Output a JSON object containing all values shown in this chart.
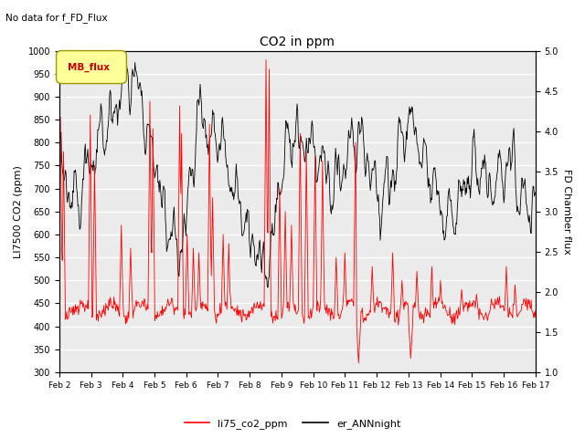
{
  "title": "CO2 in ppm",
  "top_left_text": "No data for f_FD_Flux",
  "ylabel_left": "LI7500 CO2 (ppm)",
  "ylabel_right": "FD Chamber flux",
  "ylim_left": [
    300,
    1000
  ],
  "ylim_right": [
    1.0,
    5.0
  ],
  "yticks_left": [
    300,
    350,
    400,
    450,
    500,
    550,
    600,
    650,
    700,
    750,
    800,
    850,
    900,
    950,
    1000
  ],
  "yticks_right": [
    1.0,
    1.5,
    2.0,
    2.5,
    3.0,
    3.5,
    4.0,
    4.5,
    5.0
  ],
  "xlabels": [
    "Feb 2",
    "Feb 3",
    "Feb 4",
    "Feb 5",
    "Feb 6",
    "Feb 7",
    "Feb 8",
    "Feb 9",
    "Feb 10",
    "Feb 11",
    "Feb 12",
    "Feb 13",
    "Feb 14",
    "Feb 15",
    "Feb 16",
    "Feb 17"
  ],
  "red_line_color": "red",
  "black_line_color": "black",
  "background_color": "#ebebeb",
  "grid_color": "white",
  "mb_flux_box_facecolor": "#ffff99",
  "mb_flux_box_edgecolor": "#999900",
  "mb_flux_text_color": "#cc0000",
  "mb_flux_label": "MB_flux",
  "figsize": [
    6.4,
    4.8
  ],
  "dpi": 100
}
